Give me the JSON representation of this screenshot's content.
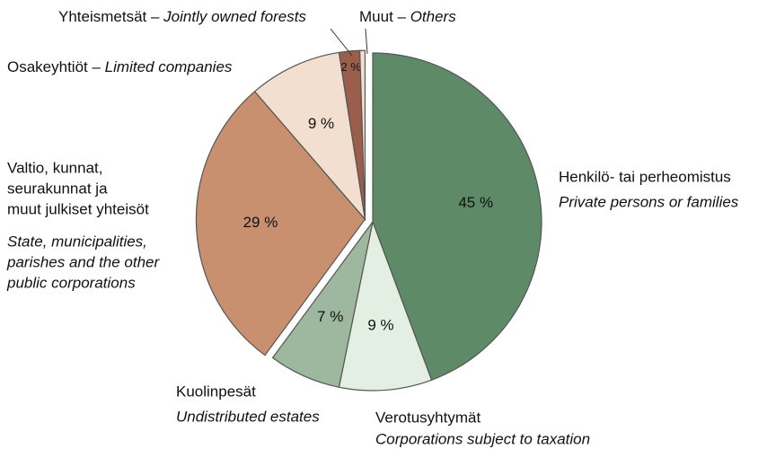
{
  "chart_data": {
    "type": "pie",
    "categories": [
      [
        "Henkilö- tai perheomistus"
      ],
      [
        "Verotusyhtymät"
      ],
      [
        "Kuolinpesät"
      ],
      [
        "Valtio, kunnat,",
        "seurakunnat ja",
        "muut julkiset yhteisöt"
      ],
      [
        "Osakeyhtiöt – "
      ],
      [
        "Yhteismetsät – "
      ],
      [
        "Muut – "
      ]
    ],
    "categories_en": [
      [
        "Private persons or families"
      ],
      [
        "Corporations subject to taxation"
      ],
      [
        "Undistributed estates"
      ],
      [
        "State, municipalities,",
        "parishes and the other",
        "public corporations"
      ],
      [
        "Limited companies"
      ],
      [
        "Jointly owned forests"
      ],
      [
        "Others"
      ]
    ],
    "values": [
      45,
      9,
      7,
      29,
      9,
      2,
      0.5
    ],
    "value_labels": [
      "45 %",
      "9 %",
      "7 %",
      "29 %",
      "9 %",
      "2 %",
      null
    ],
    "colors": [
      "#5e8a68",
      "#e4efe3",
      "#9db89e",
      "#c9906f",
      "#f2dfcf",
      "#9b5e4c",
      "#f2dfcf"
    ],
    "exploded": [
      3,
      4,
      5,
      6
    ]
  }
}
